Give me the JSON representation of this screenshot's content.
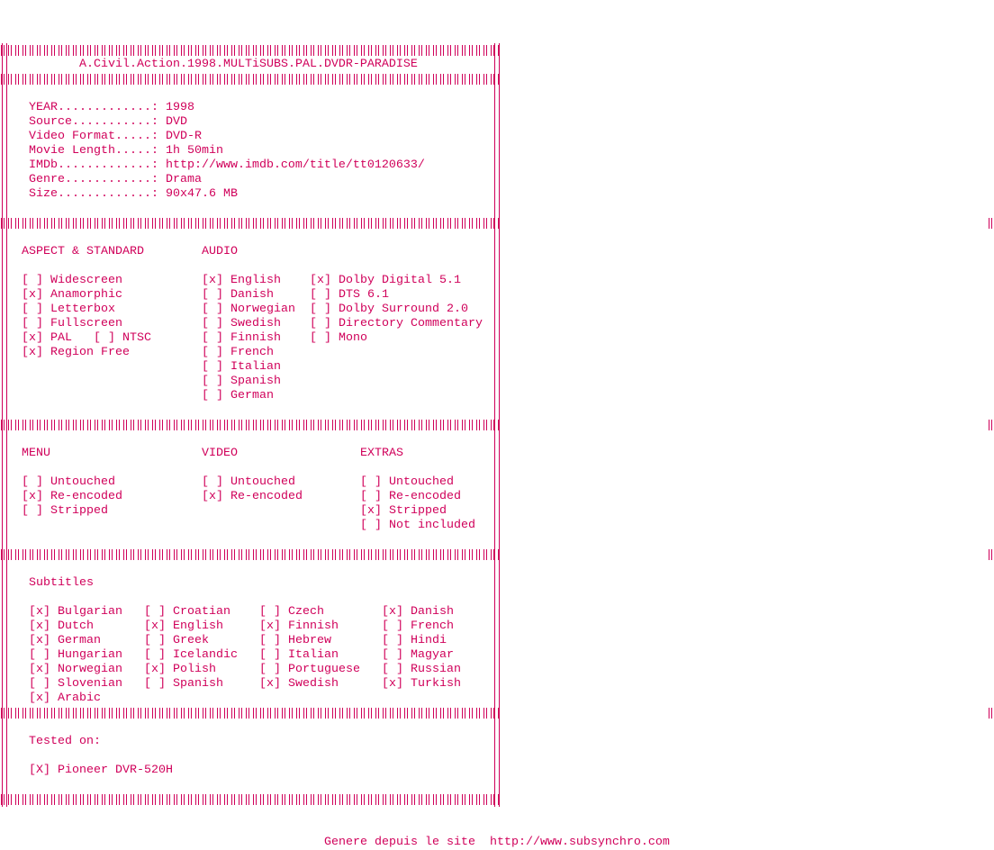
{
  "accent_color": "#d0005a",
  "title": "A.Civil.Action.1998.MULTiSUBS.PAL.DVDR-PARADISE",
  "info": [
    "YEAR.............: 1998",
    "Source...........: DVD",
    "Video Format.....: DVD-R",
    "Movie Length.....: 1h 50min",
    "IMDb.............: http://www.imdb.com/title/tt0120633/",
    "Genre............: Drama",
    "Size.............: 90x47.6 MB"
  ],
  "aspect": {
    "heading": "ASPECT & STANDARD",
    "items": [
      "[ ] Widescreen",
      "[x] Anamorphic",
      "[ ] Letterbox",
      "[ ] Fullscreen",
      "[x] PAL   [ ] NTSC",
      "[x] Region Free"
    ]
  },
  "audio": {
    "heading": "AUDIO",
    "languages": [
      "[x] English",
      "[ ] Danish",
      "[ ] Norwegian",
      "[ ] Swedish",
      "[ ] Finnish",
      "[ ] French",
      "[ ] Italian",
      "[ ] Spanish",
      "[ ] German"
    ],
    "formats": [
      "[x] Dolby Digital 5.1",
      "[ ] DTS 6.1",
      "[ ] Dolby Surround 2.0",
      "[ ] Directory Commentary",
      "[ ] Mono"
    ]
  },
  "menu": {
    "heading": "MENU",
    "items": [
      "[ ] Untouched",
      "[x] Re-encoded",
      "[ ] Stripped"
    ]
  },
  "video": {
    "heading": "VIDEO",
    "items": [
      "[ ] Untouched",
      "[x] Re-encoded"
    ]
  },
  "extras": {
    "heading": "EXTRAS",
    "items": [
      "[ ] Untouched",
      "[ ] Re-encoded",
      "[x] Stripped",
      "[ ] Not included"
    ]
  },
  "subtitles": {
    "heading": "Subtitles",
    "rows": [
      [
        "[x] Bulgarian",
        "[ ] Croatian",
        "[ ] Czech",
        "[x] Danish"
      ],
      [
        "[x] Dutch",
        "[x] English",
        "[x] Finnish",
        "[ ] French"
      ],
      [
        "[x] German",
        "[ ] Greek",
        "[ ] Hebrew",
        "[ ] Hindi"
      ],
      [
        "[ ] Hungarian",
        "[ ] Icelandic",
        "[ ] Italian",
        "[ ] Magyar"
      ],
      [
        "[x] Norwegian",
        "[x] Polish",
        "[ ] Portuguese",
        "[ ] Russian"
      ],
      [
        "[ ] Slovenian",
        "[ ] Spanish",
        "[x] Swedish",
        "[x] Turkish"
      ],
      [
        "[x] Arabic"
      ]
    ]
  },
  "tested": {
    "heading": "Tested on:",
    "items": [
      "[X] Pioneer DVR-520H"
    ]
  },
  "footer": "Genere depuis le site  http://www.subsynchro.com"
}
